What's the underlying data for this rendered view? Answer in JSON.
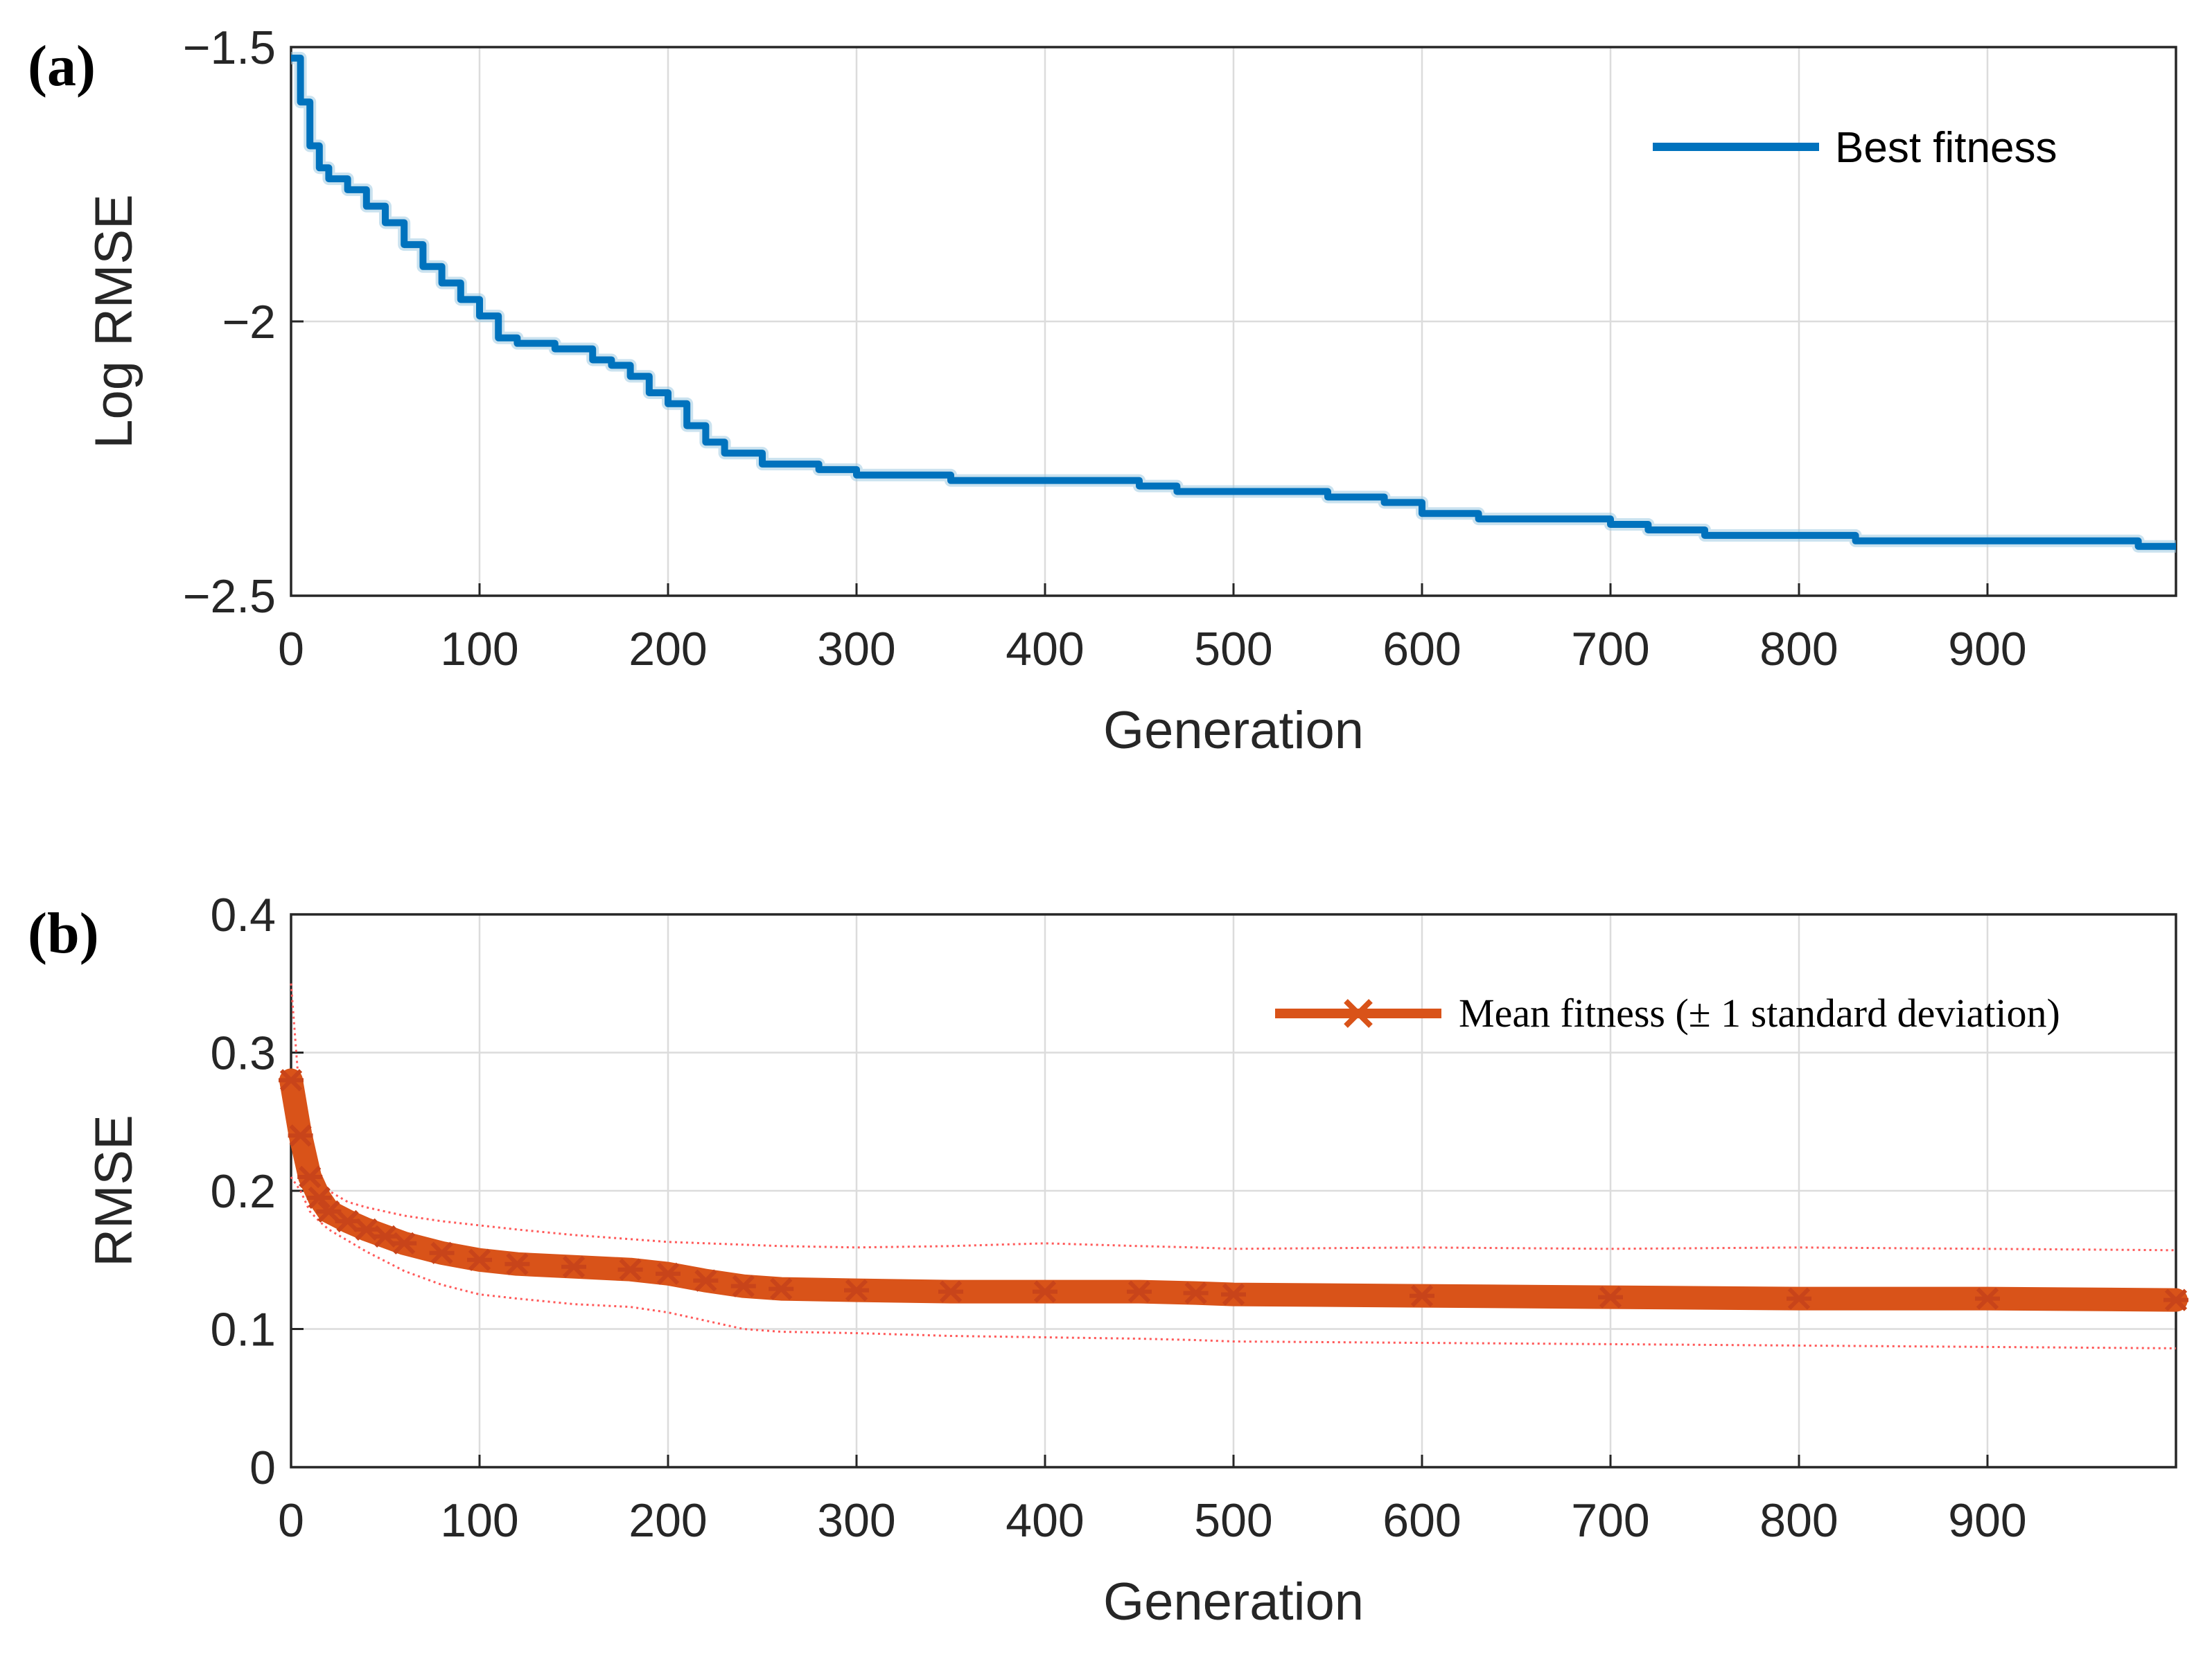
{
  "chart_data": [
    {
      "panel_label": "(a)",
      "type": "line",
      "title": "",
      "xlabel": "Generation",
      "ylabel": "Log RMSE",
      "xlim": [
        0,
        1000
      ],
      "ylim": [
        -2.5,
        -1.5
      ],
      "xticks": [
        "0",
        "100",
        "200",
        "300",
        "400",
        "500",
        "600",
        "700",
        "800",
        "900"
      ],
      "yticks": [
        "−1.5",
        "−2",
        "−2.5"
      ],
      "ytick_values": [
        -1.5,
        -2,
        -2.5
      ],
      "grid": true,
      "legend_position": "top-right",
      "series": [
        {
          "name": "Best fitness",
          "color": "#0072BD",
          "x": [
            0,
            5,
            10,
            15,
            20,
            30,
            40,
            50,
            60,
            70,
            80,
            90,
            100,
            110,
            120,
            140,
            160,
            170,
            180,
            190,
            200,
            210,
            220,
            230,
            250,
            280,
            300,
            330,
            350,
            400,
            430,
            450,
            470,
            500,
            550,
            580,
            600,
            630,
            680,
            700,
            720,
            750,
            800,
            830,
            900,
            950,
            980,
            1000
          ],
          "y": [
            -1.52,
            -1.6,
            -1.68,
            -1.72,
            -1.74,
            -1.76,
            -1.79,
            -1.82,
            -1.86,
            -1.9,
            -1.93,
            -1.96,
            -1.99,
            -2.03,
            -2.04,
            -2.05,
            -2.07,
            -2.08,
            -2.1,
            -2.13,
            -2.15,
            -2.19,
            -2.22,
            -2.24,
            -2.26,
            -2.27,
            -2.28,
            -2.28,
            -2.29,
            -2.29,
            -2.29,
            -2.3,
            -2.31,
            -2.31,
            -2.32,
            -2.33,
            -2.35,
            -2.36,
            -2.36,
            -2.37,
            -2.38,
            -2.39,
            -2.39,
            -2.4,
            -2.4,
            -2.4,
            -2.41,
            -2.41
          ]
        }
      ]
    },
    {
      "panel_label": "(b)",
      "type": "line",
      "title": "",
      "xlabel": "Generation",
      "ylabel": "RMSE",
      "xlim": [
        0,
        1000
      ],
      "ylim": [
        0,
        0.4
      ],
      "xticks": [
        "0",
        "100",
        "200",
        "300",
        "400",
        "500",
        "600",
        "700",
        "800",
        "900"
      ],
      "yticks": [
        "0",
        "0.1",
        "0.2",
        "0.3",
        "0.4"
      ],
      "ytick_values": [
        0,
        0.1,
        0.2,
        0.3,
        0.4
      ],
      "grid": true,
      "legend_position": "top-right",
      "series": [
        {
          "name": "Mean fitness (± 1 standard deviation)",
          "color": "#D95319",
          "marker": "star",
          "x": [
            0,
            5,
            10,
            15,
            20,
            30,
            40,
            50,
            60,
            80,
            100,
            120,
            150,
            180,
            200,
            220,
            240,
            260,
            300,
            350,
            400,
            450,
            480,
            500,
            600,
            700,
            800,
            900,
            1000
          ],
          "y": [
            0.28,
            0.24,
            0.21,
            0.195,
            0.185,
            0.178,
            0.172,
            0.167,
            0.162,
            0.155,
            0.15,
            0.147,
            0.145,
            0.143,
            0.14,
            0.135,
            0.131,
            0.129,
            0.128,
            0.127,
            0.127,
            0.127,
            0.126,
            0.125,
            0.124,
            0.123,
            0.122,
            0.122,
            0.121
          ],
          "upper": [
            0.35,
            0.26,
            0.23,
            0.21,
            0.2,
            0.192,
            0.188,
            0.185,
            0.182,
            0.178,
            0.175,
            0.172,
            0.168,
            0.165,
            0.163,
            0.162,
            0.161,
            0.16,
            0.159,
            0.16,
            0.162,
            0.16,
            0.159,
            0.158,
            0.159,
            0.158,
            0.159,
            0.158,
            0.157
          ],
          "lower": [
            0.21,
            0.2,
            0.185,
            0.178,
            0.172,
            0.164,
            0.156,
            0.149,
            0.142,
            0.132,
            0.125,
            0.122,
            0.118,
            0.116,
            0.112,
            0.106,
            0.1,
            0.098,
            0.097,
            0.095,
            0.094,
            0.093,
            0.092,
            0.091,
            0.09,
            0.089,
            0.088,
            0.087,
            0.086
          ]
        }
      ]
    }
  ]
}
